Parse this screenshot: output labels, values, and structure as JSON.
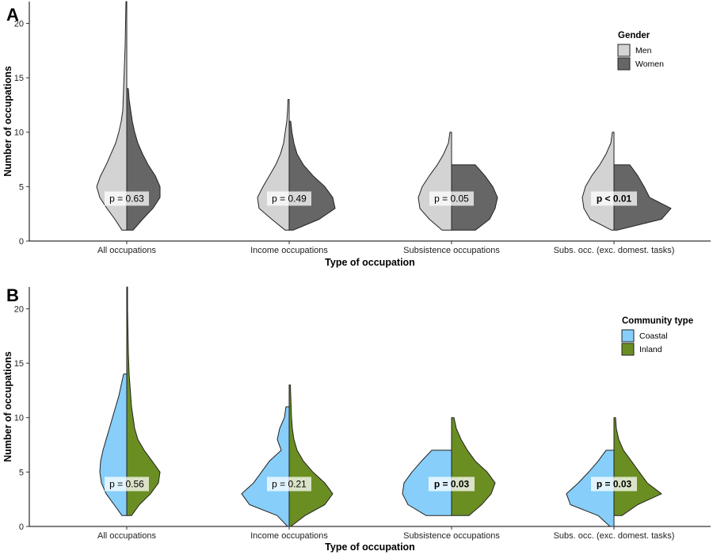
{
  "chart_data": [
    {
      "type": "violin",
      "panel": "A",
      "xlabel": "Type of occupation",
      "ylabel": "Number of occupations",
      "ylim": [
        0,
        22
      ],
      "yticks": [
        0,
        5,
        10,
        15,
        20
      ],
      "categories": [
        "All occupations",
        "Income occupations",
        "Subsistence occupations",
        "Subs. occ. (exc. domest. tasks)"
      ],
      "legend": {
        "title": "Gender",
        "position": "top-right"
      },
      "series": [
        {
          "name": "Men",
          "color": "#d3d3d3",
          "side": "left",
          "profiles": [
            [
              [
                1,
                0.06
              ],
              [
                2,
                0.15
              ],
              [
                3,
                0.25
              ],
              [
                4,
                0.34
              ],
              [
                5,
                0.38
              ],
              [
                6,
                0.33
              ],
              [
                7,
                0.26
              ],
              [
                8,
                0.2
              ],
              [
                9,
                0.14
              ],
              [
                10,
                0.1
              ],
              [
                11,
                0.07
              ],
              [
                12,
                0.05
              ],
              [
                14,
                0.04
              ],
              [
                16,
                0.03
              ],
              [
                18,
                0.02
              ],
              [
                20,
                0.015
              ],
              [
                22,
                0.01
              ]
            ],
            [
              [
                1,
                0.05
              ],
              [
                2,
                0.22
              ],
              [
                3,
                0.38
              ],
              [
                4,
                0.4
              ],
              [
                5,
                0.33
              ],
              [
                6,
                0.25
              ],
              [
                7,
                0.17
              ],
              [
                8,
                0.11
              ],
              [
                9,
                0.07
              ],
              [
                10,
                0.05
              ],
              [
                11,
                0.03
              ],
              [
                12,
                0.02
              ],
              [
                13,
                0.015
              ]
            ],
            [
              [
                1,
                0.12
              ],
              [
                2,
                0.28
              ],
              [
                3,
                0.4
              ],
              [
                4,
                0.42
              ],
              [
                5,
                0.37
              ],
              [
                6,
                0.28
              ],
              [
                7,
                0.18
              ],
              [
                8,
                0.1
              ],
              [
                9,
                0.04
              ],
              [
                10,
                0.02
              ]
            ],
            [
              [
                1,
                0.03
              ],
              [
                2,
                0.3
              ],
              [
                3,
                0.38
              ],
              [
                4,
                0.4
              ],
              [
                5,
                0.36
              ],
              [
                6,
                0.28
              ],
              [
                7,
                0.18
              ],
              [
                8,
                0.1
              ],
              [
                9,
                0.04
              ],
              [
                10,
                0.02
              ]
            ]
          ]
        },
        {
          "name": "Women",
          "color": "#666666",
          "side": "right",
          "profiles": [
            [
              [
                1,
                0.08
              ],
              [
                2,
                0.2
              ],
              [
                3,
                0.33
              ],
              [
                4,
                0.42
              ],
              [
                5,
                0.42
              ],
              [
                6,
                0.36
              ],
              [
                7,
                0.27
              ],
              [
                8,
                0.2
              ],
              [
                9,
                0.14
              ],
              [
                10,
                0.1
              ],
              [
                11,
                0.07
              ],
              [
                12,
                0.05
              ],
              [
                13,
                0.03
              ],
              [
                14,
                0.02
              ]
            ],
            [
              [
                1,
                0.05
              ],
              [
                2,
                0.38
              ],
              [
                3,
                0.58
              ],
              [
                4,
                0.55
              ],
              [
                5,
                0.45
              ],
              [
                6,
                0.3
              ],
              [
                7,
                0.18
              ],
              [
                8,
                0.1
              ],
              [
                9,
                0.06
              ],
              [
                10,
                0.035
              ],
              [
                11,
                0.02
              ]
            ],
            [
              [
                1,
                0.3
              ],
              [
                2,
                0.48
              ],
              [
                3,
                0.55
              ],
              [
                4,
                0.58
              ],
              [
                5,
                0.52
              ],
              [
                6,
                0.42
              ],
              [
                7,
                0.3
              ]
            ],
            [
              [
                1,
                0.04
              ],
              [
                2,
                0.6
              ],
              [
                3,
                0.72
              ],
              [
                4,
                0.45
              ],
              [
                5,
                0.38
              ],
              [
                6,
                0.3
              ],
              [
                7,
                0.2
              ]
            ]
          ]
        }
      ],
      "annotations": [
        {
          "text": "p = 0.63",
          "bold": false
        },
        {
          "text": "p = 0.49",
          "bold": false
        },
        {
          "text": "p = 0.05",
          "bold": false
        },
        {
          "text": "p < 0.01",
          "bold": true
        }
      ]
    },
    {
      "type": "violin",
      "panel": "B",
      "xlabel": "Type of occupation",
      "ylabel": "Number of occupations",
      "ylim": [
        0,
        22
      ],
      "yticks": [
        0,
        5,
        10,
        15,
        20
      ],
      "categories": [
        "All occupations",
        "Income occupations",
        "Subsistence occupations",
        "Subs. occ. (exc. domest. tasks)"
      ],
      "legend": {
        "title": "Community type",
        "position": "top-right"
      },
      "series": [
        {
          "name": "Coastal",
          "color": "#87cefa",
          "side": "left",
          "profiles": [
            [
              [
                1,
                0.06
              ],
              [
                2,
                0.16
              ],
              [
                3,
                0.26
              ],
              [
                4,
                0.32
              ],
              [
                5,
                0.34
              ],
              [
                6,
                0.33
              ],
              [
                7,
                0.3
              ],
              [
                8,
                0.26
              ],
              [
                9,
                0.22
              ],
              [
                10,
                0.18
              ],
              [
                11,
                0.14
              ],
              [
                12,
                0.1
              ],
              [
                13,
                0.07
              ],
              [
                14,
                0.04
              ]
            ],
            [
              [
                0,
                0.02
              ],
              [
                1,
                0.15
              ],
              [
                2,
                0.5
              ],
              [
                3,
                0.6
              ],
              [
                4,
                0.45
              ],
              [
                5,
                0.35
              ],
              [
                6,
                0.25
              ],
              [
                7,
                0.1
              ],
              [
                8,
                0.15
              ],
              [
                9,
                0.12
              ],
              [
                10,
                0.06
              ],
              [
                11,
                0.04
              ]
            ],
            [
              [
                1,
                0.32
              ],
              [
                2,
                0.55
              ],
              [
                3,
                0.62
              ],
              [
                4,
                0.6
              ],
              [
                5,
                0.5
              ],
              [
                6,
                0.38
              ],
              [
                7,
                0.25
              ]
            ],
            [
              [
                0,
                0.05
              ],
              [
                1,
                0.2
              ],
              [
                2,
                0.55
              ],
              [
                3,
                0.6
              ],
              [
                4,
                0.45
              ],
              [
                5,
                0.32
              ],
              [
                6,
                0.2
              ],
              [
                7,
                0.1
              ]
            ]
          ]
        },
        {
          "name": "Inland",
          "color": "#6b8e23",
          "side": "right",
          "profiles": [
            [
              [
                1,
                0.06
              ],
              [
                2,
                0.16
              ],
              [
                3,
                0.3
              ],
              [
                4,
                0.4
              ],
              [
                5,
                0.42
              ],
              [
                6,
                0.32
              ],
              [
                7,
                0.22
              ],
              [
                8,
                0.14
              ],
              [
                9,
                0.1
              ],
              [
                10,
                0.08
              ],
              [
                11,
                0.06
              ],
              [
                12,
                0.05
              ],
              [
                14,
                0.03
              ],
              [
                16,
                0.02
              ],
              [
                18,
                0.015
              ],
              [
                20,
                0.01
              ],
              [
                22,
                0.01
              ]
            ],
            [
              [
                0,
                0.02
              ],
              [
                1,
                0.2
              ],
              [
                2,
                0.45
              ],
              [
                3,
                0.55
              ],
              [
                4,
                0.45
              ],
              [
                5,
                0.3
              ],
              [
                6,
                0.18
              ],
              [
                7,
                0.1
              ],
              [
                8,
                0.06
              ],
              [
                9,
                0.04
              ],
              [
                10,
                0.03
              ],
              [
                11,
                0.025
              ],
              [
                12,
                0.02
              ],
              [
                13,
                0.015
              ]
            ],
            [
              [
                1,
                0.22
              ],
              [
                2,
                0.38
              ],
              [
                3,
                0.5
              ],
              [
                4,
                0.55
              ],
              [
                5,
                0.45
              ],
              [
                6,
                0.3
              ],
              [
                7,
                0.2
              ],
              [
                8,
                0.12
              ],
              [
                9,
                0.06
              ],
              [
                10,
                0.03
              ]
            ],
            [
              [
                1,
                0.1
              ],
              [
                2,
                0.3
              ],
              [
                3,
                0.6
              ],
              [
                4,
                0.42
              ],
              [
                5,
                0.32
              ],
              [
                6,
                0.22
              ],
              [
                7,
                0.12
              ],
              [
                8,
                0.06
              ],
              [
                9,
                0.03
              ],
              [
                10,
                0.02
              ]
            ]
          ]
        }
      ],
      "annotations": [
        {
          "text": "p = 0.56",
          "bold": false
        },
        {
          "text": "p = 0.21",
          "bold": false
        },
        {
          "text": "p = 0.03",
          "bold": true
        },
        {
          "text": "p = 0.03",
          "bold": true
        }
      ]
    }
  ]
}
